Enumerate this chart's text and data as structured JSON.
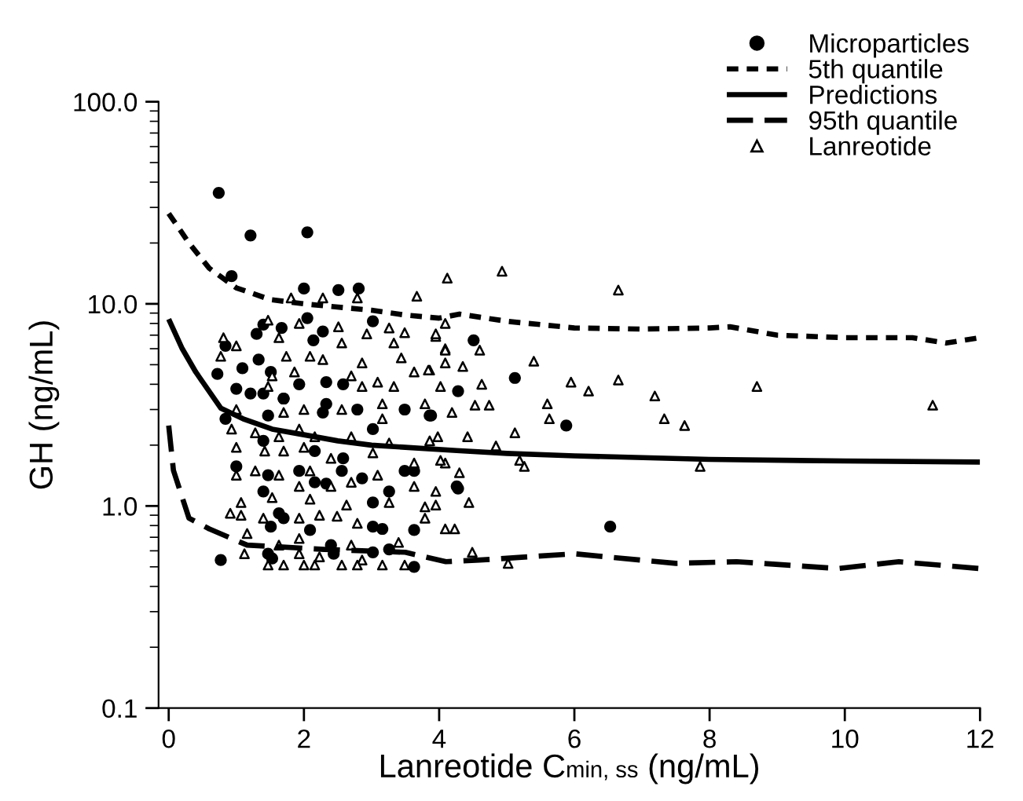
{
  "chart_data": {
    "type": "scatter",
    "xlabel": "Lanreotide C$_{min, ss}$ (ng/mL)",
    "ylabel": "GH (ng/mL)",
    "xlim": [
      -0.15,
      12
    ],
    "xticks": [
      0,
      2,
      4,
      6,
      8,
      10,
      12
    ],
    "ylim": [
      0.1,
      100.0
    ],
    "yticks": [
      0.1,
      {
        "value": 1,
        "label": "1.0"
      },
      {
        "value": 10,
        "label": "10.0"
      },
      {
        "value": 100,
        "label": "100.0"
      }
    ],
    "log": "y",
    "grid": false,
    "legend": "top right",
    "series": [
      {
        "name": "Microparticles",
        "marker": "circle",
        "color": "#000000",
        "x": [
          0.74,
          1.21,
          2.05,
          0.93,
          2.0,
          2.51,
          2.81,
          2.05,
          1.4,
          1.67,
          1.3,
          2.28,
          3.02,
          0.84,
          2.14,
          1.33,
          0.72,
          1.09,
          1.51,
          1.7,
          1.0,
          1.21,
          1.47,
          0.84,
          1.93,
          2.33,
          2.58,
          2.33,
          2.28,
          2.79,
          3.02,
          3.49,
          3.86,
          1.4,
          2.16,
          2.58,
          2.56,
          1.0,
          1.47,
          1.4,
          2.16,
          2.33,
          2.86,
          3.49,
          3.63,
          4.26,
          3.26,
          3.02,
          1.63,
          1.7,
          1.51,
          3.02,
          3.16,
          3.63,
          2.09,
          0.77,
          1.47,
          1.53,
          2.4,
          2.44,
          3.02,
          3.26,
          3.63,
          1.4,
          1.7,
          1.93,
          4.51,
          5.12,
          4.28,
          3.88,
          5.88,
          4.28,
          6.53
        ],
        "values": [
          35.4,
          21.8,
          22.6,
          13.7,
          11.9,
          11.7,
          11.9,
          8.5,
          7.9,
          7.6,
          7.1,
          7.3,
          8.2,
          6.2,
          6.6,
          5.3,
          4.5,
          4.8,
          4.6,
          3.4,
          3.8,
          3.6,
          2.8,
          2.7,
          4.0,
          4.1,
          4.0,
          3.2,
          2.9,
          3.0,
          2.4,
          3.0,
          2.8,
          2.1,
          1.87,
          1.72,
          1.49,
          1.57,
          1.42,
          1.18,
          1.31,
          1.29,
          1.37,
          1.49,
          1.49,
          1.25,
          1.18,
          1.04,
          0.92,
          0.87,
          0.79,
          0.79,
          0.77,
          0.76,
          0.76,
          0.54,
          0.58,
          0.55,
          0.64,
          0.58,
          0.59,
          0.61,
          0.5,
          3.6,
          3.4,
          1.49,
          6.6,
          4.3,
          3.7,
          2.8,
          2.5,
          1.22,
          0.79
        ]
      },
      {
        "name": "5th quantile",
        "type": "line",
        "line_style": "dotted",
        "color": "#000000",
        "x": [
          0,
          0.3,
          0.6,
          1.0,
          1.5,
          2.0,
          3.0,
          3.5,
          4.0,
          4.3,
          5.0,
          6.0,
          7.0,
          8.0,
          8.3,
          9.0,
          10.0,
          11.0,
          11.5,
          12.0
        ],
        "values": [
          28,
          20,
          15,
          12,
          10.5,
          10,
          9.3,
          8.8,
          8.5,
          8.9,
          8.2,
          7.6,
          7.5,
          7.6,
          7.7,
          7.0,
          6.8,
          6.8,
          6.4,
          6.8
        ]
      },
      {
        "name": "Predictions",
        "type": "line",
        "line_style": "solid",
        "color": "#000000",
        "x": [
          0,
          0.2,
          0.4,
          0.77,
          1.1,
          1.53,
          2.0,
          2.5,
          3.0,
          3.5,
          4.26,
          5.0,
          6.0,
          8.0,
          10.0,
          12.0
        ],
        "values": [
          8.4,
          6.0,
          4.6,
          3.05,
          2.7,
          2.4,
          2.25,
          2.1,
          2.0,
          1.95,
          1.88,
          1.82,
          1.77,
          1.7,
          1.67,
          1.65
        ]
      },
      {
        "name": "95th quantile",
        "type": "line",
        "line_style": "dashed",
        "color": "#000000",
        "x": [
          0,
          0.07,
          0.3,
          0.6,
          1.16,
          2.3,
          3.5,
          4.1,
          4.6,
          6.0,
          7.5,
          8.4,
          9.9,
          10.8,
          12.0
        ],
        "values": [
          2.5,
          1.5,
          0.87,
          0.77,
          0.64,
          0.61,
          0.59,
          0.53,
          0.54,
          0.58,
          0.52,
          0.53,
          0.49,
          0.53,
          0.49
        ]
      },
      {
        "name": "Lanreotide",
        "marker": "triangle",
        "color": "#000000",
        "x": [
          4.12,
          4.93,
          6.65,
          4.09,
          3.95,
          4.09,
          4.6,
          4.09,
          4.35,
          5.4,
          3.86,
          4.63,
          5.95,
          6.21,
          6.65,
          7.19,
          8.7,
          11.3,
          4.19,
          4.53,
          4.74,
          5.6,
          5.63,
          7.33,
          7.63,
          5.12,
          4.42,
          3.98,
          4.84,
          4.09,
          5.19,
          5.26,
          7.86,
          4.3,
          4.44,
          3.95,
          4.23,
          4.49,
          5.02,
          1.81,
          2.28,
          2.79,
          3.67,
          1.93,
          2.51,
          1.47,
          3.26,
          3.49,
          0.81,
          1.0,
          1.63,
          2.56,
          2.93,
          3.33,
          3.95,
          1.74,
          2.09,
          2.28,
          2.86,
          3.44,
          4.09,
          1.53,
          1.86,
          2.7,
          3.09,
          3.63,
          3.84,
          1.47,
          2.86,
          3.33,
          4.02,
          1.0,
          1.7,
          2.0,
          2.56,
          3.16,
          3.79,
          3.16,
          0.93,
          1.28,
          1.63,
          1.93,
          2.16,
          2.7,
          3.26,
          3.86,
          1.0,
          1.42,
          1.7,
          2.0,
          2.4,
          3.02,
          3.63,
          4.02,
          1.0,
          1.28,
          1.63,
          1.93,
          2.09,
          2.4,
          2.7,
          3.09,
          3.63,
          3.95,
          1.07,
          1.53,
          2.09,
          2.63,
          3.26,
          3.79,
          0.91,
          1.07,
          1.4,
          1.93,
          2.23,
          2.49,
          2.79,
          3.79,
          4.09,
          1.16,
          1.63,
          1.93,
          2.7,
          3.4,
          1.12,
          1.93,
          2.23,
          2.86,
          1.47,
          1.7,
          2.0,
          2.16,
          2.56,
          2.79,
          3.16,
          3.49,
          0.77
        ],
        "values": [
          13.4,
          14.5,
          11.7,
          8.0,
          6.9,
          6.0,
          5.9,
          5.1,
          4.9,
          5.2,
          4.7,
          4.0,
          4.1,
          3.7,
          4.2,
          3.5,
          3.9,
          3.15,
          2.9,
          3.15,
          3.15,
          3.2,
          2.7,
          2.7,
          2.5,
          2.3,
          2.2,
          2.2,
          1.98,
          1.63,
          1.68,
          1.57,
          1.57,
          1.46,
          1.04,
          1.01,
          0.77,
          0.59,
          0.52,
          10.7,
          10.7,
          10.7,
          10.9,
          8.0,
          7.7,
          8.3,
          7.6,
          7.2,
          6.8,
          6.2,
          6.8,
          6.4,
          7.1,
          6.4,
          7.1,
          5.5,
          5.5,
          5.3,
          5.1,
          5.4,
          5.9,
          4.4,
          4.6,
          4.4,
          4.1,
          4.6,
          4.7,
          3.9,
          3.9,
          3.9,
          3.9,
          3.0,
          2.9,
          3.0,
          3.0,
          3.2,
          3.2,
          2.7,
          2.4,
          2.3,
          2.2,
          2.4,
          2.2,
          2.2,
          2.05,
          2.1,
          1.95,
          1.87,
          1.87,
          1.95,
          1.72,
          1.83,
          1.63,
          1.68,
          1.42,
          1.49,
          1.42,
          1.25,
          1.49,
          1.25,
          1.31,
          1.42,
          1.25,
          1.18,
          1.04,
          1.1,
          1.08,
          1.01,
          1.04,
          0.99,
          0.92,
          0.9,
          0.87,
          0.87,
          0.9,
          0.89,
          0.82,
          0.87,
          0.77,
          0.73,
          0.64,
          0.69,
          0.64,
          0.66,
          0.58,
          0.58,
          0.56,
          0.54,
          0.51,
          0.51,
          0.51,
          0.51,
          0.51,
          0.51,
          0.51,
          0.51,
          5.5
        ]
      }
    ]
  }
}
